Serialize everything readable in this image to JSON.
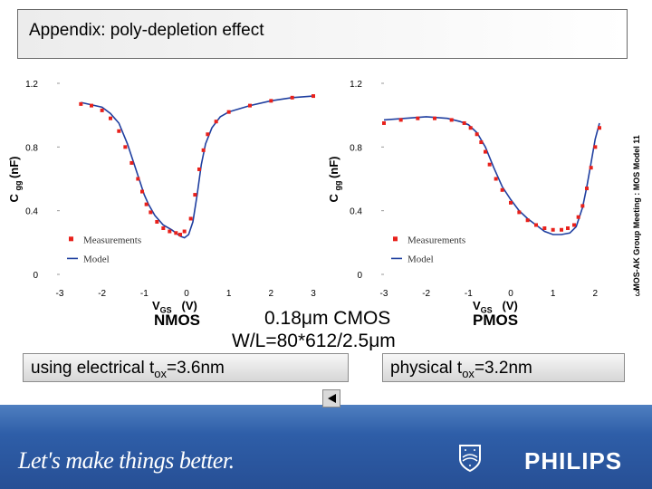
{
  "slide_title": "Appendix: poly-depletion effect",
  "side_text": "MOS-AK Group Meeting : MOS Model 11",
  "center_block": {
    "line1": "0.18μm CMOS",
    "line2": "W/L=80*612/2.5μm"
  },
  "nmos_label": "NMOS",
  "pmos_label": "PMOS",
  "caption_left": {
    "prefix": "using electrical t",
    "sub": "ox",
    "suffix": "=3.6nm"
  },
  "caption_right": {
    "prefix": "physical t",
    "sub": "ox",
    "suffix": "=3.2nm"
  },
  "footer": {
    "slogan": "Let's make things better.",
    "brand": "PHILIPS"
  },
  "colors": {
    "measurement": "#e8211b",
    "model": "#1f3fa0",
    "band": "#2e5ea8"
  },
  "chart_data": [
    {
      "type": "line",
      "ylabel": "C gg (nF)",
      "xlabel": "V GS (V)",
      "xlim": [
        -3,
        3
      ],
      "ylim": [
        0,
        1.2
      ],
      "xticks": [
        "-3",
        "-2",
        "-1",
        "0",
        "1",
        "2",
        "3"
      ],
      "yticks": [
        "0",
        "0.4",
        "0.8",
        "1.2"
      ],
      "legend": [
        "Measurements",
        "Model"
      ],
      "legend_position": "bottom-left",
      "series": [
        {
          "name": "Measurements",
          "x": [
            -2.5,
            -2.25,
            -2.0,
            -1.8,
            -1.6,
            -1.45,
            -1.3,
            -1.15,
            -1.05,
            -0.95,
            -0.85,
            -0.7,
            -0.55,
            -0.4,
            -0.25,
            -0.15,
            -0.05,
            0.1,
            0.2,
            0.3,
            0.4,
            0.5,
            0.7,
            1.0,
            1.5,
            2.0,
            2.5,
            3.0
          ],
          "y": [
            1.07,
            1.06,
            1.03,
            0.98,
            0.9,
            0.8,
            0.7,
            0.6,
            0.52,
            0.44,
            0.39,
            0.33,
            0.29,
            0.27,
            0.26,
            0.25,
            0.27,
            0.35,
            0.5,
            0.66,
            0.78,
            0.88,
            0.96,
            1.02,
            1.06,
            1.09,
            1.11,
            1.12
          ]
        },
        {
          "name": "Model",
          "x": [
            -2.5,
            -2.0,
            -1.8,
            -1.6,
            -1.4,
            -1.25,
            -1.1,
            -1.0,
            -0.9,
            -0.75,
            -0.55,
            -0.35,
            -0.15,
            -0.05,
            0.05,
            0.15,
            0.25,
            0.35,
            0.45,
            0.6,
            0.8,
            1.0,
            1.5,
            2.0,
            2.5,
            3.0
          ],
          "y": [
            1.08,
            1.05,
            1.01,
            0.95,
            0.82,
            0.7,
            0.58,
            0.5,
            0.44,
            0.37,
            0.31,
            0.28,
            0.24,
            0.23,
            0.25,
            0.33,
            0.5,
            0.69,
            0.82,
            0.92,
            0.99,
            1.02,
            1.06,
            1.09,
            1.11,
            1.12
          ]
        }
      ]
    },
    {
      "type": "line",
      "ylabel": "C gg (nF)",
      "xlabel": "V GS (V)",
      "xlim": [
        -3,
        3
      ],
      "ylim": [
        0,
        1.2
      ],
      "xticks": [
        "-3",
        "-2",
        "-1",
        "0",
        "1",
        "2",
        "3"
      ],
      "yticks": [
        "0",
        "0.4",
        "0.8",
        "1.2"
      ],
      "legend": [
        "Measurements",
        "Model"
      ],
      "legend_position": "bottom-left",
      "series": [
        {
          "name": "Measurements",
          "x": [
            -3.0,
            -2.6,
            -2.2,
            -1.8,
            -1.4,
            -1.1,
            -0.95,
            -0.8,
            -0.7,
            -0.6,
            -0.5,
            -0.35,
            -0.2,
            0.0,
            0.2,
            0.4,
            0.6,
            0.8,
            1.0,
            1.2,
            1.35,
            1.5,
            1.6,
            1.7,
            1.8,
            1.9,
            2.0,
            2.1
          ],
          "y": [
            0.95,
            0.97,
            0.98,
            0.98,
            0.97,
            0.95,
            0.92,
            0.88,
            0.83,
            0.77,
            0.69,
            0.6,
            0.53,
            0.45,
            0.39,
            0.34,
            0.31,
            0.29,
            0.28,
            0.28,
            0.29,
            0.31,
            0.36,
            0.43,
            0.54,
            0.67,
            0.8,
            0.92
          ]
        },
        {
          "name": "Model",
          "x": [
            -3.0,
            -2.5,
            -2.0,
            -1.5,
            -1.2,
            -1.0,
            -0.8,
            -0.6,
            -0.4,
            -0.2,
            0.0,
            0.2,
            0.4,
            0.6,
            0.8,
            1.0,
            1.2,
            1.4,
            1.55,
            1.7,
            1.8,
            1.9,
            2.0,
            2.1
          ],
          "y": [
            0.97,
            0.98,
            0.99,
            0.98,
            0.96,
            0.94,
            0.89,
            0.8,
            0.67,
            0.55,
            0.47,
            0.4,
            0.35,
            0.31,
            0.27,
            0.25,
            0.25,
            0.26,
            0.3,
            0.42,
            0.55,
            0.7,
            0.85,
            0.95
          ]
        }
      ]
    }
  ]
}
